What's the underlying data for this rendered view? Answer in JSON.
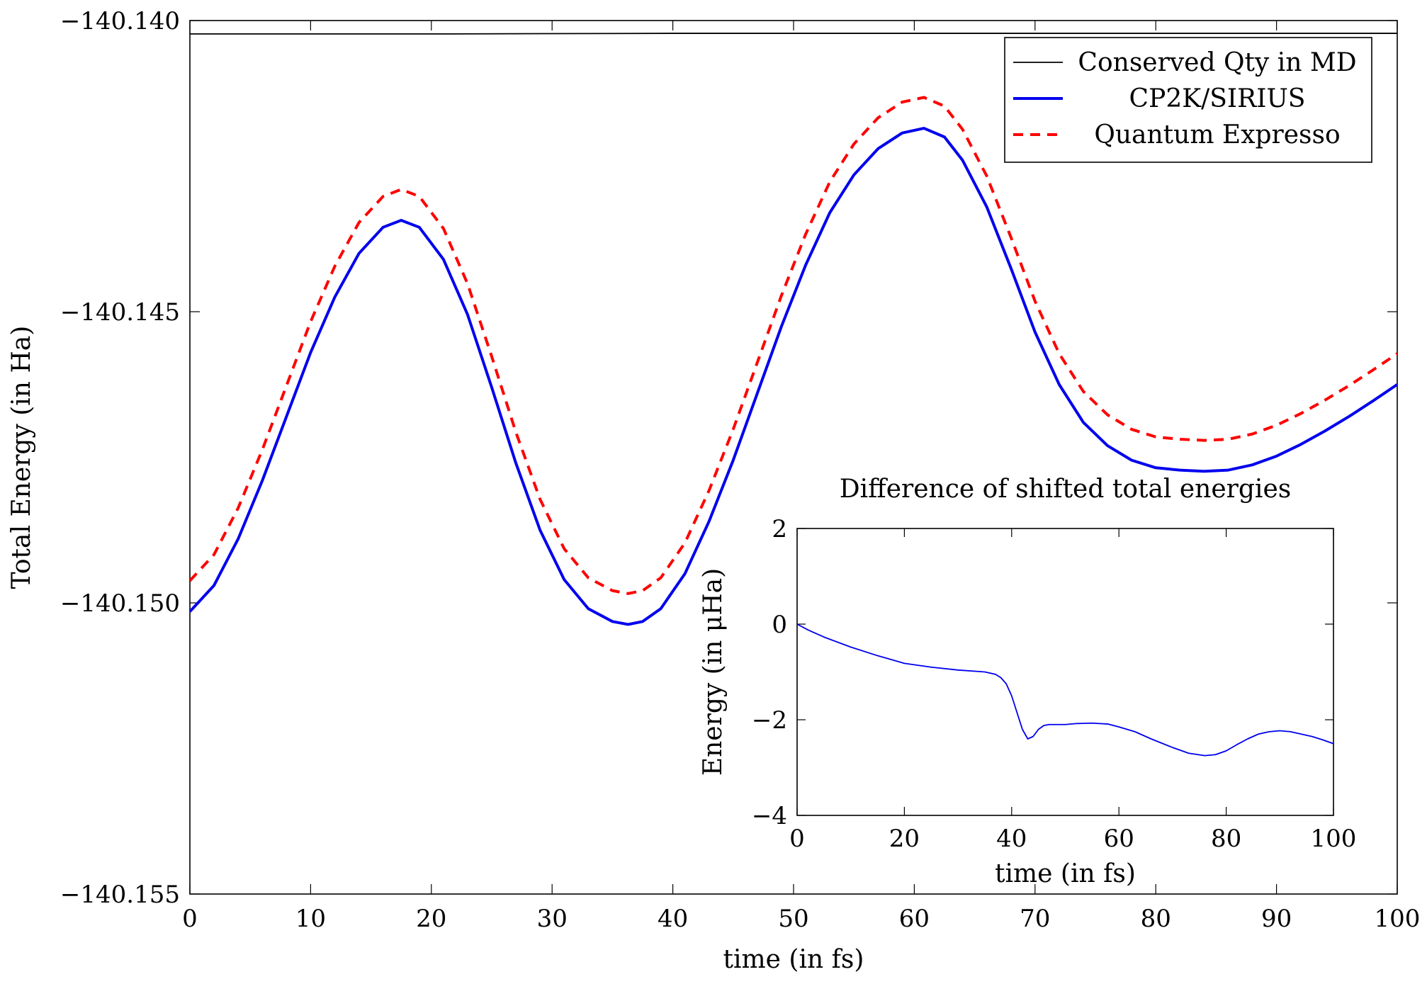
{
  "chart_data": [
    {
      "id": "main",
      "type": "line",
      "xlabel": "time (in fs)",
      "ylabel": "Total Energy (in Ha)",
      "xlim": [
        0,
        100
      ],
      "ylim": [
        -140.155,
        -140.14
      ],
      "xticks": [
        0,
        10,
        20,
        30,
        40,
        50,
        60,
        70,
        80,
        90,
        100
      ],
      "yticks": [
        -140.155,
        -140.15,
        -140.145,
        -140.14
      ],
      "ytick_labels": [
        "−140.155",
        "−140.150",
        "−140.145",
        "−140.140"
      ],
      "grid": false,
      "legend_position": "top-right",
      "series": [
        {
          "name": "Conserved Qty in MD",
          "color": "#000000",
          "style": "solid-thin",
          "x": [
            0,
            20,
            40,
            60,
            80,
            100
          ],
          "y": [
            -140.14023,
            -140.14023,
            -140.14022,
            -140.14022,
            -140.14022,
            -140.14022
          ]
        },
        {
          "name": "CP2K/SIRIUS",
          "color": "#0000ee",
          "style": "solid",
          "x": [
            0,
            2,
            4,
            6,
            8,
            10,
            12,
            14,
            16,
            17.5,
            19,
            21,
            23,
            25,
            27,
            29,
            31,
            33,
            35,
            36.3,
            37.5,
            39,
            41,
            43,
            45,
            47,
            49,
            51,
            53,
            55,
            57,
            59,
            60.8,
            62.5,
            64,
            66,
            68,
            70,
            72,
            74,
            76,
            78,
            80,
            82,
            84,
            86,
            88,
            90,
            92,
            94,
            96,
            98,
            100
          ],
          "y": [
            -140.15015,
            -140.1497,
            -140.1489,
            -140.1479,
            -140.1468,
            -140.1457,
            -140.14475,
            -140.144,
            -140.14355,
            -140.14343,
            -140.14355,
            -140.1441,
            -140.14505,
            -140.1463,
            -140.1476,
            -140.14875,
            -140.1496,
            -140.1501,
            -140.15032,
            -140.15037,
            -140.15032,
            -140.1501,
            -140.1495,
            -140.1486,
            -140.14755,
            -140.1464,
            -140.14525,
            -140.1442,
            -140.1433,
            -140.14265,
            -140.1422,
            -140.14193,
            -140.14185,
            -140.142,
            -140.1424,
            -140.1432,
            -140.14425,
            -140.14535,
            -140.14625,
            -140.1469,
            -140.1473,
            -140.14755,
            -140.14768,
            -140.14772,
            -140.14774,
            -140.14772,
            -140.14763,
            -140.14748,
            -140.14728,
            -140.14705,
            -140.1468,
            -140.14653,
            -140.14625
          ]
        },
        {
          "name": "Quantum Expresso",
          "color": "#ff0000",
          "style": "dashed",
          "x": [
            0,
            2,
            4,
            6,
            8,
            10,
            12,
            14,
            16,
            17.5,
            19,
            21,
            23,
            25,
            27,
            29,
            31,
            33,
            35,
            36.3,
            37.5,
            39,
            41,
            43,
            45,
            47,
            49,
            51,
            53,
            55,
            57,
            59,
            60.8,
            62.5,
            64,
            66,
            68,
            70,
            72,
            74,
            76,
            78,
            80,
            82,
            84,
            86,
            88,
            90,
            92,
            94,
            96,
            98,
            100
          ],
          "y": [
            -140.14962,
            -140.14917,
            -140.14837,
            -140.14737,
            -140.14627,
            -140.14517,
            -140.14422,
            -140.14347,
            -140.14302,
            -140.1429,
            -140.14302,
            -140.14357,
            -140.14452,
            -140.14577,
            -140.14707,
            -140.14822,
            -140.14907,
            -140.14957,
            -140.14979,
            -140.14984,
            -140.14979,
            -140.14957,
            -140.14897,
            -140.14807,
            -140.14702,
            -140.14587,
            -140.14472,
            -140.14367,
            -140.14277,
            -140.14212,
            -140.14167,
            -140.1414,
            -140.14132,
            -140.14147,
            -140.14187,
            -140.14267,
            -140.14372,
            -140.14482,
            -140.14572,
            -140.14637,
            -140.14677,
            -140.14702,
            -140.14715,
            -140.14719,
            -140.14721,
            -140.14719,
            -140.1471,
            -140.14695,
            -140.14675,
            -140.14652,
            -140.14627,
            -140.146,
            -140.14572
          ]
        }
      ]
    },
    {
      "id": "inset",
      "type": "line",
      "title": "Difference of shifted total energies",
      "xlabel": "time (in fs)",
      "ylabel": "Energy (in μHa)",
      "xlim": [
        0,
        100
      ],
      "ylim": [
        -4,
        2
      ],
      "xticks": [
        0,
        20,
        40,
        60,
        80,
        100
      ],
      "yticks": [
        -4,
        -2,
        0,
        2
      ],
      "ytick_labels": [
        "−4",
        "−2",
        "0",
        "2"
      ],
      "grid": false,
      "series": [
        {
          "color": "#0000ee",
          "style": "solid-thin",
          "x": [
            0,
            2,
            5,
            10,
            15,
            20,
            25,
            30,
            35,
            37,
            38,
            39,
            40,
            41,
            42,
            43,
            44,
            45,
            46,
            47,
            48,
            50,
            52,
            55,
            58,
            60,
            63,
            66,
            70,
            73,
            76,
            78,
            80,
            82,
            84,
            86,
            88,
            90,
            92,
            94,
            96,
            98,
            100
          ],
          "y": [
            0,
            -0.12,
            -0.27,
            -0.48,
            -0.66,
            -0.82,
            -0.9,
            -0.96,
            -1.0,
            -1.05,
            -1.12,
            -1.25,
            -1.5,
            -1.85,
            -2.2,
            -2.4,
            -2.35,
            -2.2,
            -2.12,
            -2.1,
            -2.1,
            -2.1,
            -2.08,
            -2.07,
            -2.09,
            -2.15,
            -2.25,
            -2.4,
            -2.58,
            -2.7,
            -2.75,
            -2.73,
            -2.65,
            -2.52,
            -2.4,
            -2.3,
            -2.25,
            -2.23,
            -2.25,
            -2.3,
            -2.35,
            -2.42,
            -2.5
          ]
        }
      ]
    }
  ]
}
